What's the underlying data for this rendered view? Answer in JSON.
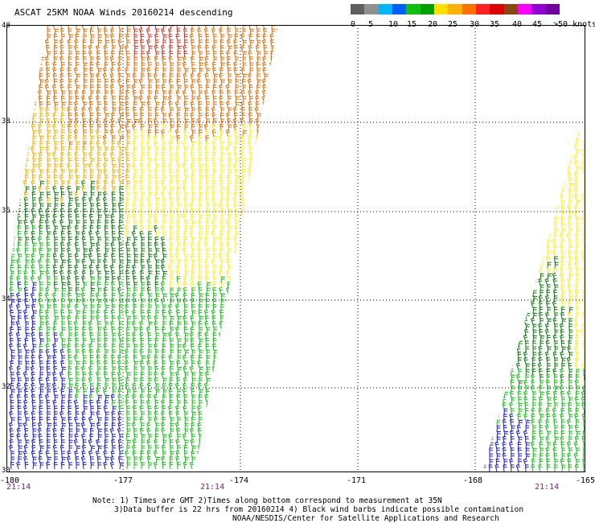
{
  "header": {
    "title": "ASCAT 25KM NOAA Winds 20160214 descending"
  },
  "legend": {
    "colors": [
      "#606060",
      "#909090",
      "#00b4ff",
      "#0060ff",
      "#10c010",
      "#00a000",
      "#ffe000",
      "#ffb000",
      "#ff7000",
      "#ff2020",
      "#e00000",
      "#8b4513",
      "#ff00ff",
      "#9400d3",
      "#7000a0"
    ],
    "labels": [
      "0",
      "5",
      "10",
      "15",
      "20",
      "25",
      "30",
      "35",
      "40",
      "45",
      ">50 knots"
    ]
  },
  "map": {
    "lat_labels": [
      "40",
      "38",
      "36",
      "34",
      "32",
      "30"
    ],
    "lon_labels": [
      "-180",
      "-177",
      "-174",
      "-171",
      "-168",
      "-165"
    ],
    "pass_times": [
      "21:14",
      "21:14",
      "21:14"
    ],
    "speed_colors": {
      "calm": "#1a1adc",
      "light": "#12c012",
      "moderate": "#0a7a0a",
      "fresh": "#ffee22",
      "strong": "#f5b000",
      "gale": "#e66a00",
      "storm": "#d83020"
    }
  },
  "footer": {
    "note_line1": "Note: 1) Times are GMT 2)Times along bottom correspond to measurement at 35N",
    "note_line2": "3)Data buffer is 22 hrs from 20160214 4) Black wind barbs indicate possible contamination",
    "credit": "NOAA/NESDIS/Center for Satellite Applications and Research"
  }
}
